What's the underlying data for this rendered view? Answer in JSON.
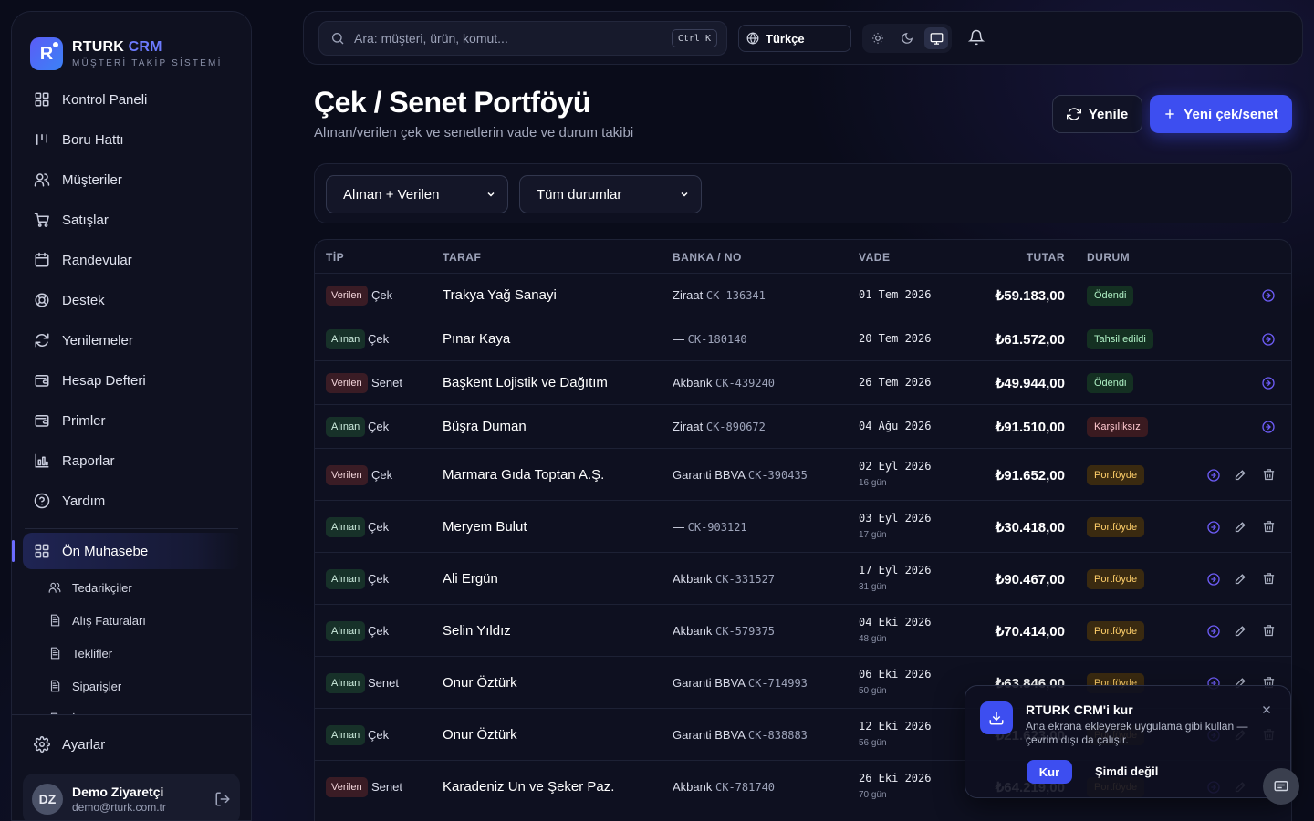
{
  "brand": {
    "name": "RTURK",
    "name_accent": "CRM",
    "subtitle": "MÜŞTERİ TAKİP SİSTEMİ",
    "logo_letter": "R",
    "accent": "#3d4ef0"
  },
  "sidebar": {
    "items": [
      {
        "label": "Kontrol Paneli",
        "icon": "dashboard-icon"
      },
      {
        "label": "Boru Hattı",
        "icon": "pipeline-icon"
      },
      {
        "label": "Müşteriler",
        "icon": "users-icon"
      },
      {
        "label": "Satışlar",
        "icon": "cart-icon"
      },
      {
        "label": "Randevular",
        "icon": "calendar-icon"
      },
      {
        "label": "Destek",
        "icon": "lifebuoy-icon"
      },
      {
        "label": "Yenilemeler",
        "icon": "refresh-icon"
      },
      {
        "label": "Hesap Defteri",
        "icon": "wallet-icon"
      },
      {
        "label": "Primler",
        "icon": "wallet-icon"
      },
      {
        "label": "Raporlar",
        "icon": "chart-icon"
      },
      {
        "label": "Yardım",
        "icon": "help-icon"
      }
    ],
    "active_section": "Ön Muhasebe",
    "sub_items": [
      {
        "label": "Tedarikçiler",
        "icon": "users-icon"
      },
      {
        "label": "Alış Faturaları",
        "icon": "document-icon"
      },
      {
        "label": "Teklifler",
        "icon": "document-icon"
      },
      {
        "label": "Siparişler",
        "icon": "document-icon"
      },
      {
        "label": "İrsaliyeler",
        "icon": "document-icon"
      }
    ],
    "settings": "Ayarlar",
    "user": {
      "initials": "DZ",
      "name": "Demo Ziyaretçi",
      "email": "demo@rturk.com.tr"
    }
  },
  "topbar": {
    "search_placeholder": "Ara: müşteri, ürün, komut...",
    "shortcut": "Ctrl K",
    "language": "Türkçe",
    "theme_selected": "system"
  },
  "page": {
    "title": "Çek / Senet Portföyü",
    "subtitle": "Alınan/verilen çek ve senetlerin vade ve durum takibi",
    "refresh_label": "Yenile",
    "new_label": "Yeni çek/senet"
  },
  "filters": {
    "direction": "Alınan + Verilen",
    "status": "Tüm durumlar"
  },
  "table": {
    "headers": {
      "type": "TİP",
      "party": "TARAF",
      "bank": "BANKA / NO",
      "due": "VADE",
      "amount": "TUTAR",
      "status": "DURUM"
    },
    "rows": [
      {
        "dir": "Verilen",
        "kind": "Çek",
        "party": "Trakya Yağ Sanayi",
        "bank": "Ziraat",
        "no": "CK-136341",
        "due": "01 Tem 2026",
        "days": "",
        "amount": "₺59.183,00",
        "status": "Ödendi",
        "editable": false
      },
      {
        "dir": "Alınan",
        "kind": "Çek",
        "party": "Pınar Kaya",
        "bank": "—",
        "no": "CK-180140",
        "due": "20 Tem 2026",
        "days": "",
        "amount": "₺61.572,00",
        "status": "Tahsil edildi",
        "editable": false
      },
      {
        "dir": "Verilen",
        "kind": "Senet",
        "party": "Başkent Lojistik ve Dağıtım",
        "bank": "Akbank",
        "no": "CK-439240",
        "due": "26 Tem 2026",
        "days": "",
        "amount": "₺49.944,00",
        "status": "Ödendi",
        "editable": false
      },
      {
        "dir": "Alınan",
        "kind": "Çek",
        "party": "Büşra Duman",
        "bank": "Ziraat",
        "no": "CK-890672",
        "due": "04 Ağu 2026",
        "days": "",
        "amount": "₺91.510,00",
        "status": "Karşılıksız",
        "editable": false
      },
      {
        "dir": "Verilen",
        "kind": "Çek",
        "party": "Marmara Gıda Toptan A.Ş.",
        "bank": "Garanti BBVA",
        "no": "CK-390435",
        "due": "02 Eyl 2026",
        "days": "16 gün",
        "amount": "₺91.652,00",
        "status": "Portföyde",
        "editable": true
      },
      {
        "dir": "Alınan",
        "kind": "Çek",
        "party": "Meryem Bulut",
        "bank": "—",
        "no": "CK-903121",
        "due": "03 Eyl 2026",
        "days": "17 gün",
        "amount": "₺30.418,00",
        "status": "Portföyde",
        "editable": true
      },
      {
        "dir": "Alınan",
        "kind": "Çek",
        "party": "Ali Ergün",
        "bank": "Akbank",
        "no": "CK-331527",
        "due": "17 Eyl 2026",
        "days": "31 gün",
        "amount": "₺90.467,00",
        "status": "Portföyde",
        "editable": true
      },
      {
        "dir": "Alınan",
        "kind": "Çek",
        "party": "Selin Yıldız",
        "bank": "Akbank",
        "no": "CK-579375",
        "due": "04 Eki 2026",
        "days": "48 gün",
        "amount": "₺70.414,00",
        "status": "Portföyde",
        "editable": true
      },
      {
        "dir": "Alınan",
        "kind": "Senet",
        "party": "Onur Öztürk",
        "bank": "Garanti BBVA",
        "no": "CK-714993",
        "due": "06 Eki 2026",
        "days": "50 gün",
        "amount": "₺63.846,00",
        "status": "Portföyde",
        "editable": true
      },
      {
        "dir": "Alınan",
        "kind": "Çek",
        "party": "Onur Öztürk",
        "bank": "Garanti BBVA",
        "no": "CK-838883",
        "due": "12 Eki 2026",
        "days": "56 gün",
        "amount": "₺21.623,00",
        "status": "Portföyde",
        "editable": true
      },
      {
        "dir": "Verilen",
        "kind": "Senet",
        "party": "Karadeniz Un ve Şeker Paz.",
        "bank": "Akbank",
        "no": "CK-781740",
        "due": "26 Eki 2026",
        "days": "70 gün",
        "amount": "₺64.219,00",
        "status": "Portföyde",
        "editable": true
      }
    ]
  },
  "install_toast": {
    "title": "RTURK CRM'i kur",
    "description": "Ana ekrana ekleyerek uygulama gibi kullan — çevrim dışı da çalışır.",
    "install_label": "Kur",
    "later_label": "Şimdi değil"
  }
}
